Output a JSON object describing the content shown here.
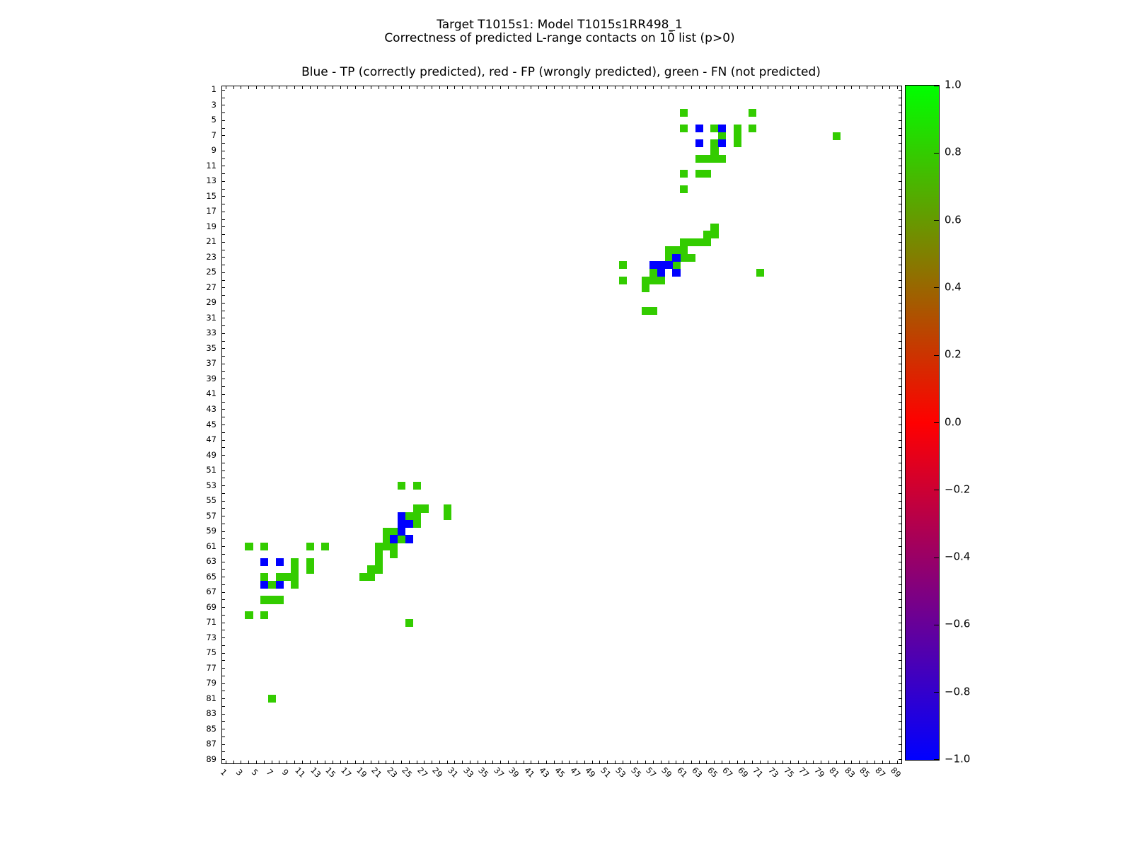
{
  "figure": {
    "suptitle_line1": "Target T1015s1: Model T1015s1RR498_1",
    "suptitle_line2": "Correctness of predicted L-range contacts on 10̄ list (p>0)"
  },
  "chart_data": {
    "type": "heatmap",
    "title": "Blue - TP (correctly predicted), red - FP (wrongly predicted), green - FN (not predicted)",
    "legend": {
      "blue": "TP (correctly predicted)",
      "red": "FP (wrongly predicted)",
      "green": "FN (not predicted)"
    },
    "grid_size": 89,
    "x_range": [
      0.5,
      89.5
    ],
    "y_range": [
      0.5,
      89.5
    ],
    "x_tick_labels": [
      "1",
      "3",
      "5",
      "7",
      "9",
      "11",
      "13",
      "15",
      "17",
      "19",
      "21",
      "23",
      "25",
      "27",
      "29",
      "31",
      "33",
      "35",
      "37",
      "39",
      "41",
      "43",
      "45",
      "47",
      "49",
      "51",
      "53",
      "55",
      "57",
      "59",
      "61",
      "63",
      "65",
      "67",
      "69",
      "71",
      "73",
      "75",
      "77",
      "79",
      "81",
      "83",
      "85",
      "87",
      "89"
    ],
    "y_tick_labels": [
      "1",
      "3",
      "5",
      "7",
      "9",
      "11",
      "13",
      "15",
      "17",
      "19",
      "21",
      "23",
      "25",
      "27",
      "29",
      "31",
      "33",
      "35",
      "37",
      "39",
      "41",
      "43",
      "45",
      "47",
      "49",
      "51",
      "53",
      "55",
      "57",
      "59",
      "61",
      "63",
      "65",
      "67",
      "69",
      "71",
      "73",
      "75",
      "77",
      "79",
      "81",
      "83",
      "85",
      "87",
      "89"
    ],
    "colors": {
      "fn_green": "#33cc00",
      "tp_blue": "#0000ff",
      "frame": "#000000"
    },
    "colorbar": {
      "min": -1.0,
      "max": 1.0,
      "tick_labels": [
        "1.0",
        "0.8",
        "0.6",
        "0.4",
        "0.2",
        "0.0",
        "−0.2",
        "−0.4",
        "−0.6",
        "−0.8",
        "−1.0"
      ],
      "tick_values": [
        1.0,
        0.8,
        0.6,
        0.4,
        0.2,
        0.0,
        -0.2,
        -0.4,
        -0.6,
        -0.8,
        -1.0
      ],
      "gradient_stops": [
        "#00ff00",
        "#808000",
        "#ff0000",
        "#800080",
        "#0000ff"
      ]
    },
    "cells": {
      "green": [
        [
          61,
          4
        ],
        [
          70,
          4
        ],
        [
          61,
          6
        ],
        [
          65,
          6
        ],
        [
          68,
          6
        ],
        [
          70,
          6
        ],
        [
          66,
          7
        ],
        [
          68,
          7
        ],
        [
          81,
          7
        ],
        [
          65,
          8
        ],
        [
          68,
          8
        ],
        [
          65,
          9
        ],
        [
          63,
          10
        ],
        [
          64,
          10
        ],
        [
          65,
          10
        ],
        [
          66,
          10
        ],
        [
          61,
          12
        ],
        [
          63,
          12
        ],
        [
          64,
          12
        ],
        [
          61,
          14
        ],
        [
          65,
          19
        ],
        [
          64,
          20
        ],
        [
          65,
          20
        ],
        [
          61,
          21
        ],
        [
          62,
          21
        ],
        [
          63,
          21
        ],
        [
          64,
          21
        ],
        [
          59,
          22
        ],
        [
          60,
          22
        ],
        [
          61,
          22
        ],
        [
          59,
          23
        ],
        [
          61,
          23
        ],
        [
          62,
          23
        ],
        [
          53,
          24
        ],
        [
          60,
          24
        ],
        [
          57,
          25
        ],
        [
          71,
          25
        ],
        [
          53,
          26
        ],
        [
          56,
          26
        ],
        [
          57,
          26
        ],
        [
          58,
          26
        ],
        [
          56,
          27
        ],
        [
          56,
          30
        ],
        [
          57,
          30
        ],
        [
          4,
          61
        ],
        [
          4,
          70
        ],
        [
          6,
          61
        ],
        [
          6,
          65
        ],
        [
          6,
          68
        ],
        [
          6,
          70
        ],
        [
          7,
          66
        ],
        [
          7,
          68
        ],
        [
          7,
          81
        ],
        [
          8,
          65
        ],
        [
          8,
          68
        ],
        [
          9,
          65
        ],
        [
          10,
          63
        ],
        [
          10,
          64
        ],
        [
          10,
          65
        ],
        [
          10,
          66
        ],
        [
          12,
          61
        ],
        [
          12,
          63
        ],
        [
          12,
          64
        ],
        [
          14,
          61
        ],
        [
          19,
          65
        ],
        [
          20,
          64
        ],
        [
          20,
          65
        ],
        [
          21,
          61
        ],
        [
          21,
          62
        ],
        [
          21,
          63
        ],
        [
          21,
          64
        ],
        [
          22,
          59
        ],
        [
          22,
          60
        ],
        [
          22,
          61
        ],
        [
          23,
          59
        ],
        [
          23,
          61
        ],
        [
          23,
          62
        ],
        [
          24,
          53
        ],
        [
          24,
          60
        ],
        [
          25,
          57
        ],
        [
          25,
          71
        ],
        [
          26,
          53
        ],
        [
          26,
          56
        ],
        [
          26,
          57
        ],
        [
          26,
          58
        ],
        [
          27,
          56
        ],
        [
          30,
          56
        ],
        [
          30,
          57
        ]
      ],
      "blue": [
        [
          63,
          6
        ],
        [
          66,
          6
        ],
        [
          63,
          8
        ],
        [
          66,
          8
        ],
        [
          60,
          23
        ],
        [
          57,
          24
        ],
        [
          58,
          24
        ],
        [
          59,
          24
        ],
        [
          58,
          25
        ],
        [
          60,
          25
        ],
        [
          6,
          63
        ],
        [
          6,
          66
        ],
        [
          8,
          63
        ],
        [
          8,
          66
        ],
        [
          23,
          60
        ],
        [
          24,
          57
        ],
        [
          24,
          58
        ],
        [
          24,
          59
        ],
        [
          25,
          58
        ],
        [
          25,
          60
        ]
      ]
    }
  }
}
